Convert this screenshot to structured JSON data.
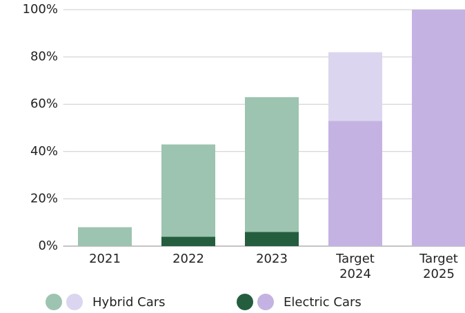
{
  "chart_data": {
    "type": "stacked_bar",
    "categories": [
      "2021",
      "2022",
      "2023",
      "Target 2024",
      "Target 2025"
    ],
    "series": [
      {
        "name": "Hybrid Cars",
        "colors": [
          "#9dc4b0",
          "#9dc4b0",
          "#9dc4b0",
          "#dcd5ef",
          "#dcd5ef"
        ],
        "values": [
          8,
          39,
          57,
          29,
          0
        ]
      },
      {
        "name": "Electric Cars",
        "colors": [
          "#245e3f",
          "#245e3f",
          "#245e3f",
          "#c4b3e2",
          "#c4b3e2"
        ],
        "values": [
          0,
          4,
          6,
          53,
          100
        ]
      }
    ],
    "ylim": [
      0,
      100
    ],
    "yticks": [
      {
        "value": 0,
        "label": "0%"
      },
      {
        "value": 20,
        "label": "20%"
      },
      {
        "value": 40,
        "label": "40%"
      },
      {
        "value": 60,
        "label": "60%"
      },
      {
        "value": 80,
        "label": "80%"
      },
      {
        "value": 100,
        "label": "100%"
      }
    ],
    "grid": true,
    "legend": "bottom"
  }
}
